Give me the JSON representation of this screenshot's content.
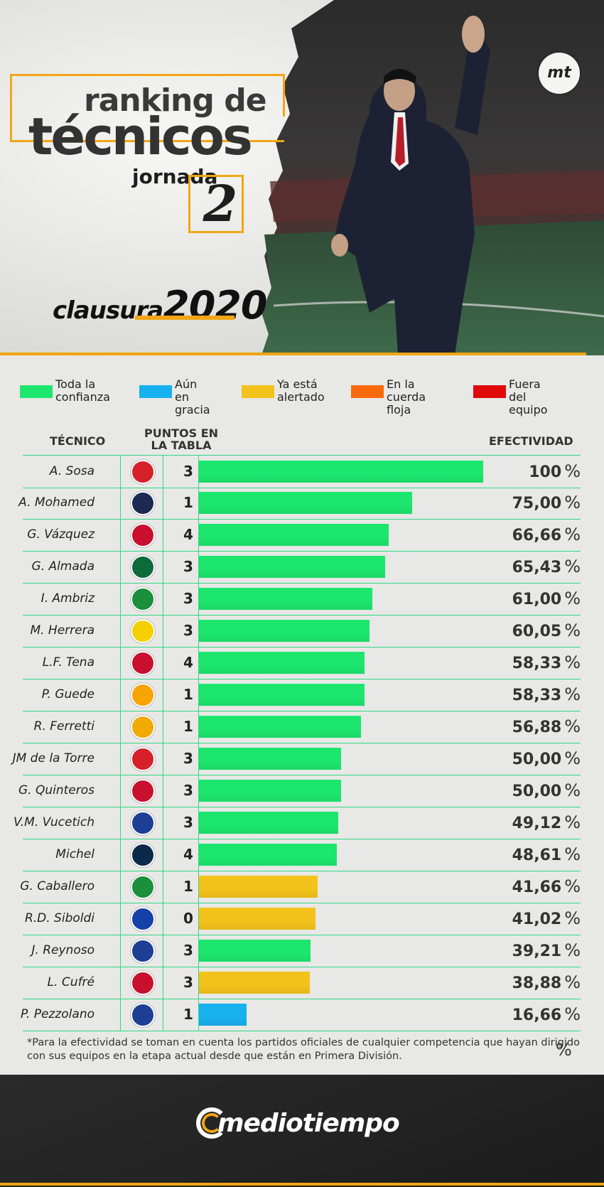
{
  "header": {
    "title_line1": "ranking de",
    "title_line2": "técnicos",
    "jornada_label": "jornada",
    "jornada_number": "2",
    "tournament_word": "clausura",
    "tournament_year": "2020",
    "corner_logo": "mt"
  },
  "legend": [
    {
      "label": "Toda la\nconfianza",
      "color": "#1de66e"
    },
    {
      "label": "Aún en\ngracia",
      "color": "#18b1ef"
    },
    {
      "label": "Ya está\nalertado",
      "color": "#f3c31b"
    },
    {
      "label": "En la\ncuerda floja",
      "color": "#f96a0c"
    },
    {
      "label": "Fuera del\nequipo",
      "color": "#e00a0a"
    }
  ],
  "table_headers": {
    "coach": "TÉCNICO",
    "points": "PUNTOS EN\nLA TABLA",
    "effectiveness": "EFECTIVIDAD"
  },
  "chart_data": {
    "type": "bar",
    "title": "ranking de técnicos",
    "xlabel": "",
    "ylabel": "EFECTIVIDAD",
    "xlim": [
      0,
      100
    ],
    "categories": [
      "A. Sosa",
      "A. Mohamed",
      "G. Vázquez",
      "G. Almada",
      "I. Ambriz",
      "M. Herrera",
      "L.F. Tena",
      "P. Guede",
      "R. Ferretti",
      "JM de la Torre",
      "G. Quinteros",
      "V.M. Vucetich",
      "Michel",
      "G. Caballero",
      "R.D. Siboldi",
      "J. Reynoso",
      "L. Cufré",
      "P. Pezzolano"
    ],
    "values": [
      100,
      75.0,
      66.66,
      65.43,
      61.0,
      60.05,
      58.33,
      58.33,
      56.88,
      50.0,
      50.0,
      49.12,
      48.61,
      41.66,
      41.02,
      39.21,
      38.88,
      16.66
    ],
    "value_labels": [
      "100",
      "75,00",
      "66,66",
      "65,43",
      "61,00",
      "60,05",
      "58,33",
      "58,33",
      "56,88",
      "50,00",
      "50,00",
      "49,12",
      "48,61",
      "41,66",
      "41,02",
      "39,21",
      "38,88",
      "16,66"
    ],
    "value_unit": "%",
    "points": [
      3,
      1,
      4,
      3,
      3,
      3,
      4,
      1,
      1,
      3,
      3,
      3,
      4,
      1,
      0,
      3,
      3,
      1
    ],
    "status": [
      "confianza",
      "confianza",
      "confianza",
      "confianza",
      "confianza",
      "confianza",
      "confianza",
      "confianza",
      "confianza",
      "confianza",
      "confianza",
      "confianza",
      "confianza",
      "alertado",
      "alertado",
      "confianza",
      "alertado",
      "gracia"
    ],
    "team_crests": [
      "necaxa-crest",
      "monterrey-crest",
      "san-luis-crest",
      "santos-crest",
      "leon-crest",
      "america-crest",
      "chivas-crest",
      "morelia-crest",
      "tigres-crest",
      "toluca-crest",
      "tijuana-crest",
      "queretaro-crest",
      "pumas-crest",
      "juarez-crest",
      "cruz-azul-crest",
      "puebla-crest",
      "atlas-crest",
      "pachuca-crest"
    ]
  },
  "crest_colors": [
    "#d6202a",
    "#1b2a52",
    "#c8102e",
    "#0b6b3a",
    "#1a8f3c",
    "#f5d000",
    "#c8102e",
    "#f7a400",
    "#f2a900",
    "#d6202a",
    "#c8102e",
    "#1c3f95",
    "#0b2a4a",
    "#1a8f3c",
    "#1540a8",
    "#1c3f95",
    "#c8102e",
    "#1c3f95"
  ],
  "status_colors": {
    "confianza": "#1de66e",
    "gracia": "#18b1ef",
    "alertado": "#f3c31b"
  },
  "footnote": "*Para la efectividad se toman en cuenta los partidos oficiales de cualquier competencia que hayan dirigido con sus equipos en la etapa actual desde que están en Primera División.",
  "footer": {
    "brand": "mediotiempo"
  }
}
